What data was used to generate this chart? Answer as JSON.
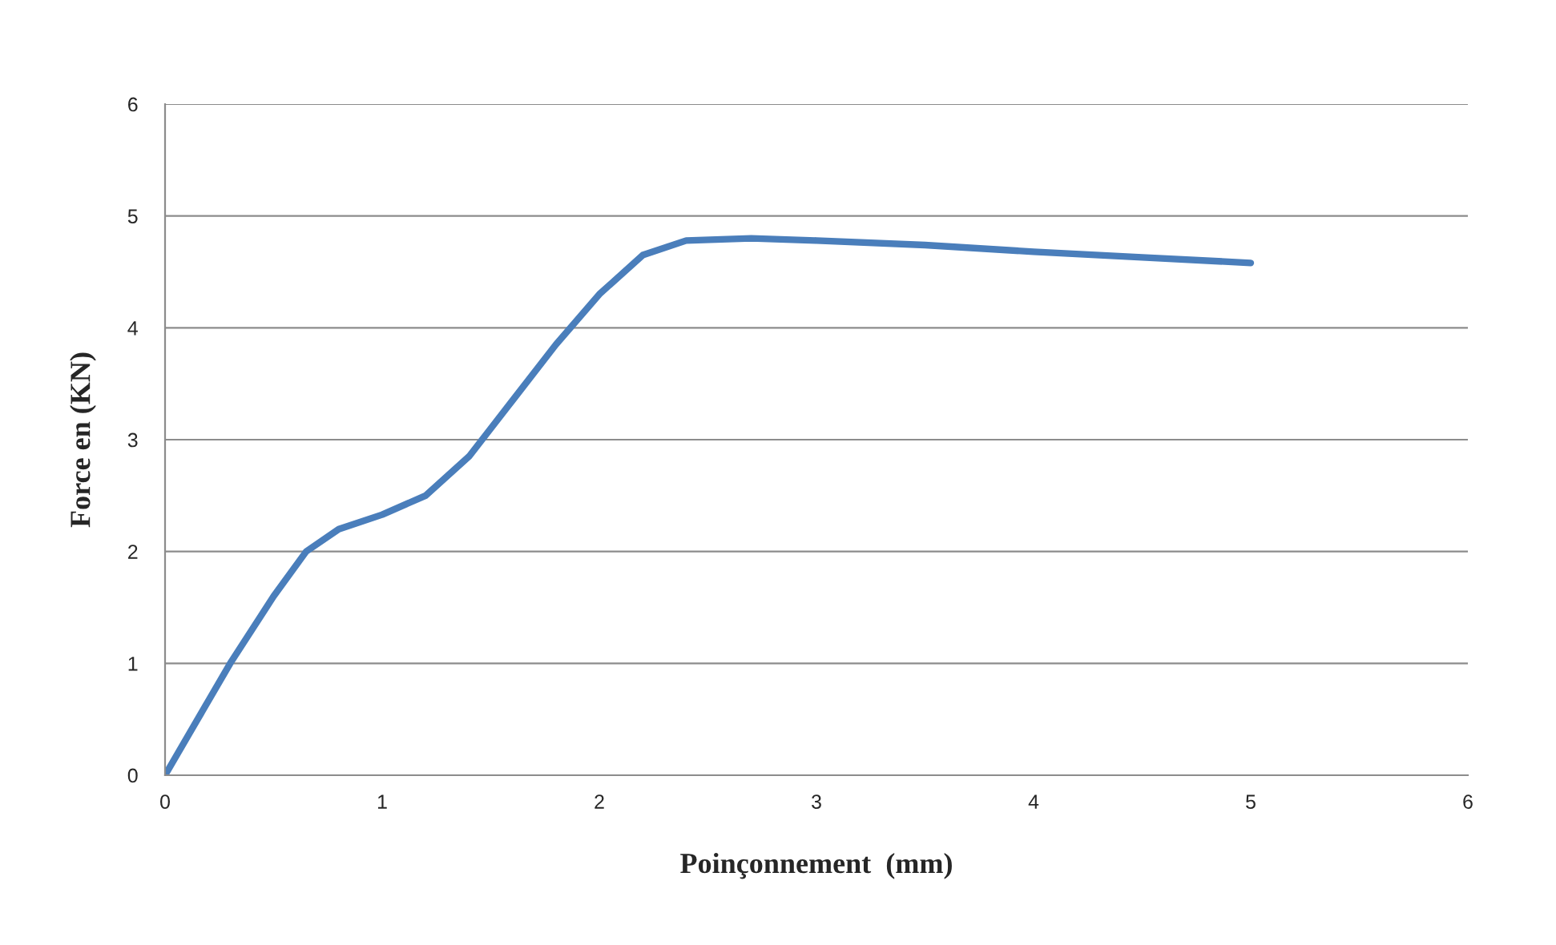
{
  "chart_data": {
    "type": "line",
    "xlabel": "Poinçonnement  (mm)",
    "ylabel": "Force en (KN)",
    "x": [
      0,
      0.15,
      0.3,
      0.5,
      0.65,
      0.8,
      1.0,
      1.2,
      1.4,
      1.6,
      1.8,
      2.0,
      2.2,
      2.4,
      2.7,
      3.0,
      3.5,
      4.0,
      4.5,
      5.0
    ],
    "series": [
      {
        "color": "#4a7ebb",
        "values": [
          0,
          0.5,
          1.0,
          1.6,
          2.0,
          2.2,
          2.33,
          2.5,
          2.85,
          3.35,
          3.85,
          4.3,
          4.65,
          4.78,
          4.8,
          4.78,
          4.74,
          4.68,
          4.63,
          4.58
        ]
      }
    ],
    "xlim": [
      0,
      6
    ],
    "xticks": [
      0,
      1,
      2,
      3,
      4,
      5,
      6
    ],
    "ylim": [
      0,
      6
    ],
    "yticks": [
      0,
      1,
      2,
      3,
      4,
      5,
      6
    ],
    "grid": "y",
    "legend": false,
    "marker": "none",
    "line_style": "solid"
  }
}
